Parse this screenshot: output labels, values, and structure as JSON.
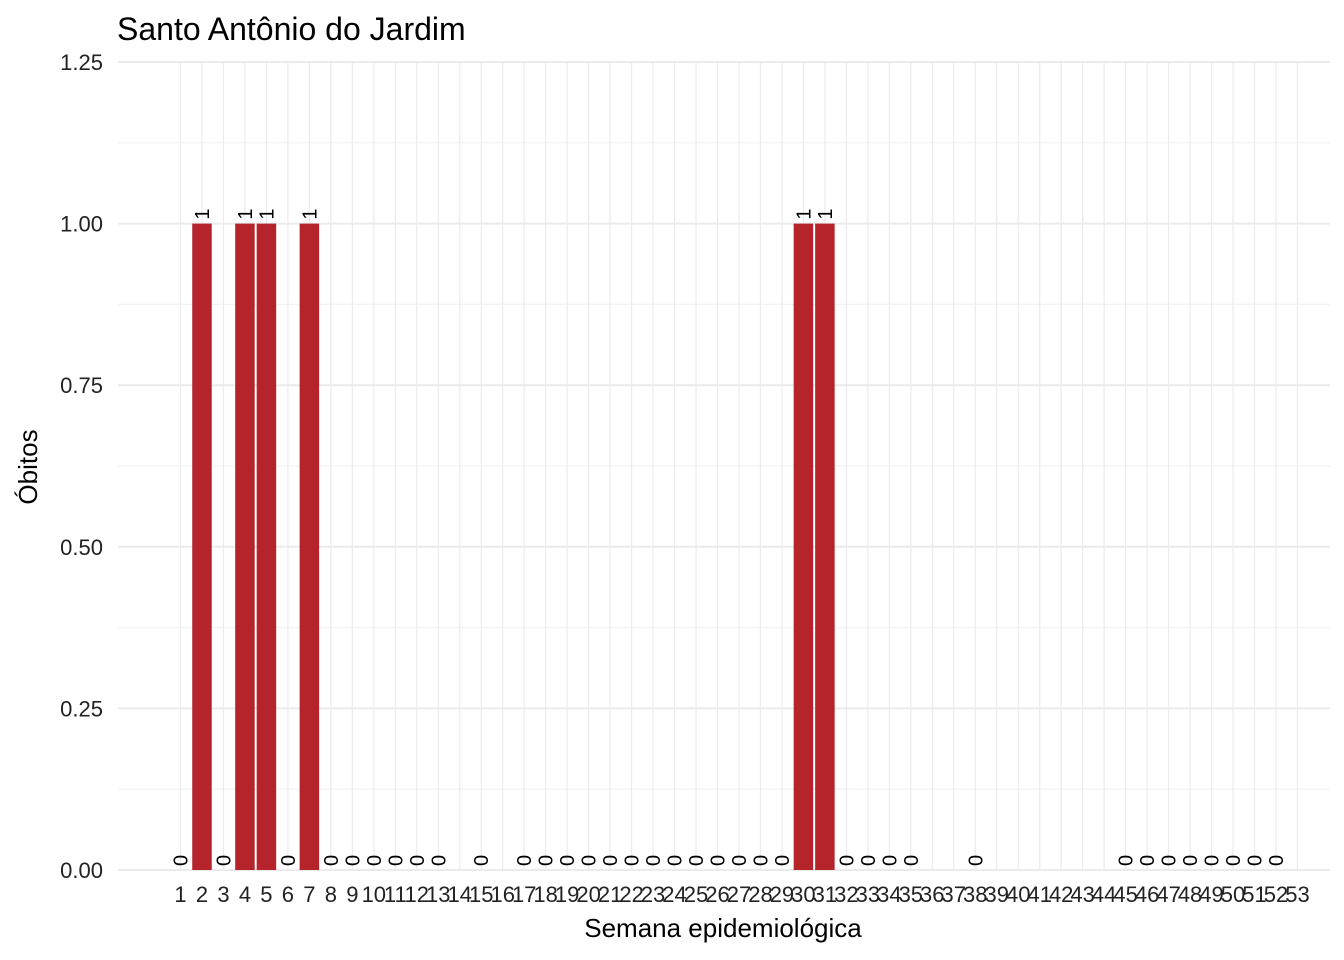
{
  "chart_data": {
    "type": "bar",
    "title": "Santo Antônio do Jardim",
    "xlabel": "Semana epidemiológica",
    "ylabel": "Óbitos",
    "ylim": [
      0,
      1.25
    ],
    "yticks": [
      "0.00",
      "0.25",
      "0.50",
      "0.75",
      "1.00",
      "1.25"
    ],
    "grid": true,
    "bar_color": "#b5232b",
    "categories": [
      "1",
      "2",
      "3",
      "4",
      "5",
      "6",
      "7",
      "8",
      "9",
      "10",
      "11",
      "12",
      "13",
      "14",
      "15",
      "16",
      "17",
      "18",
      "19",
      "20",
      "21",
      "22",
      "23",
      "24",
      "25",
      "26",
      "27",
      "28",
      "29",
      "30",
      "31",
      "32",
      "33",
      "34",
      "35",
      "36",
      "37",
      "38",
      "39",
      "40",
      "41",
      "42",
      "43",
      "44",
      "45",
      "46",
      "47",
      "48",
      "49",
      "50",
      "51",
      "52",
      "53"
    ],
    "values": [
      0,
      1,
      0,
      1,
      1,
      0,
      1,
      0,
      0,
      0,
      0,
      0,
      0,
      null,
      0,
      null,
      0,
      0,
      0,
      0,
      0,
      0,
      0,
      0,
      0,
      0,
      0,
      0,
      0,
      1,
      1,
      0,
      0,
      0,
      0,
      null,
      null,
      0,
      null,
      null,
      null,
      null,
      null,
      null,
      0,
      0,
      0,
      0,
      0,
      0,
      0,
      0,
      null
    ],
    "labels": [
      "0",
      "1",
      "0",
      "1",
      "1",
      "0",
      "1",
      "0",
      "0",
      "0",
      "0",
      "0",
      "0",
      "",
      "0",
      "",
      "0",
      "0",
      "0",
      "0",
      "0",
      "0",
      "0",
      "0",
      "0",
      "0",
      "0",
      "0",
      "0",
      "1",
      "1",
      "0",
      "0",
      "0",
      "0",
      "",
      "",
      "0",
      "",
      "",
      "",
      "",
      "",
      "",
      "0",
      "0",
      "0",
      "0",
      "0",
      "0",
      "0",
      "0",
      ""
    ]
  }
}
